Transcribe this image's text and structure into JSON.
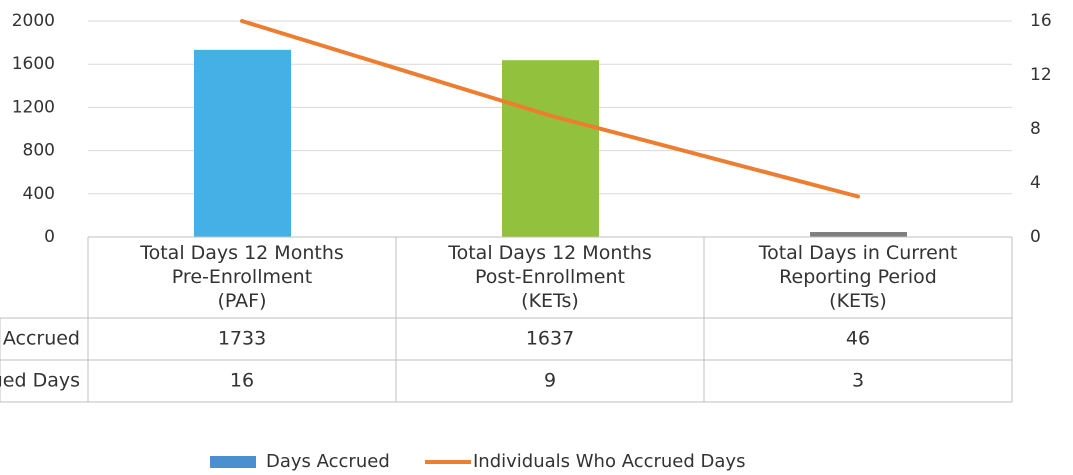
{
  "chart_data": {
    "type": "bar_line_table",
    "categories": [
      "Total Days 12 Months\nPre-Enrollment\n(PAF)",
      "Total Days 12 Months\nPost-Enrollment\n(KETs)",
      "Total Days in Current\nReporting Period\n(KETs)"
    ],
    "series": [
      {
        "name": "Days Accrued",
        "type": "bar",
        "color": "#4a90d0",
        "point_colors": [
          "#45b0e6",
          "#92c13e",
          "#7f7f7f"
        ],
        "values": [
          1733,
          1637,
          46
        ]
      },
      {
        "name": "Individuals Who Accrued Days",
        "type": "line",
        "axis": "y2",
        "color": "#ed7d31",
        "values": [
          16,
          9,
          3
        ]
      }
    ],
    "ylim": [
      0,
      2000
    ],
    "yticks": [
      0,
      400,
      800,
      1200,
      1600,
      2000
    ],
    "y2lim": [
      0,
      16
    ],
    "y2ticks": [
      0,
      4,
      8,
      12,
      16
    ],
    "grid": true,
    "legend": "bottom"
  }
}
